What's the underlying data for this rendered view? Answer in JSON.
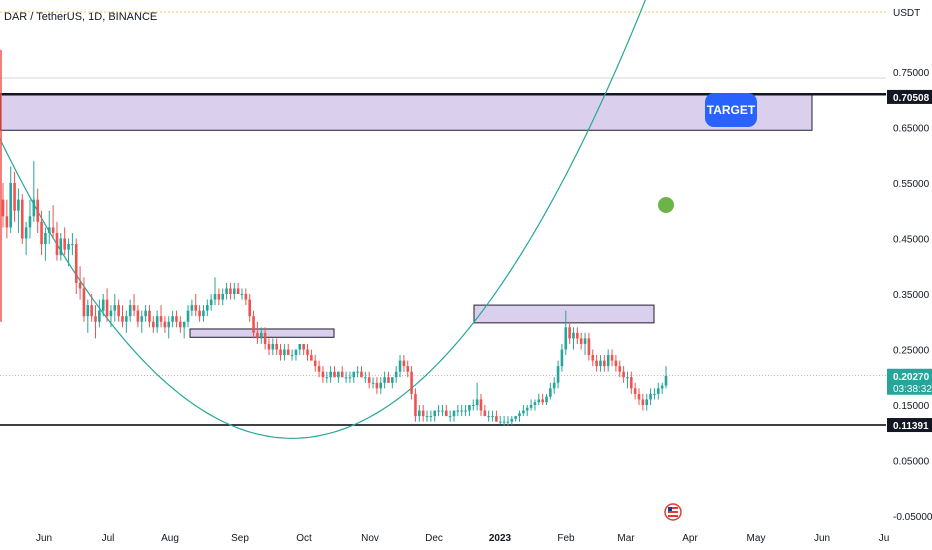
{
  "header": {
    "title": "DAR / TetherUS, 1D, BINANCE",
    "currency": "USDT"
  },
  "colors": {
    "up": "#26a69a",
    "down": "#ef5350",
    "zone_fill": "#d1c4e9",
    "zone_stroke": "#1e1e2e",
    "curve": "#26a69a",
    "target_bg": "#2962ff",
    "green_dot": "#6bb548",
    "current_price_bg": "#26a69a"
  },
  "chart_data": {
    "type": "candlestick",
    "title": "DAR / TetherUS, 1D, BINANCE",
    "y_axis": {
      "ticks": [
        "0.75000",
        "0.65000",
        "0.55000",
        "0.45000",
        "0.35000",
        "0.25000",
        "0.15000",
        "0.05000",
        "-0.05000"
      ],
      "tick_values": [
        0.75,
        0.65,
        0.55,
        0.45,
        0.35,
        0.25,
        0.15,
        0.05,
        -0.05
      ],
      "range": [
        -0.07,
        0.82
      ]
    },
    "x_axis": {
      "ticks": [
        "Jun",
        "Jul",
        "Aug",
        "Sep",
        "Oct",
        "Nov",
        "Dec",
        "2023",
        "Feb",
        "Mar",
        "Apr",
        "May",
        "Jun",
        "Ju"
      ],
      "tick_days": [
        10,
        40,
        71,
        102,
        132,
        163,
        193,
        224,
        255,
        283,
        314,
        344,
        375,
        405
      ]
    },
    "price_tags": [
      {
        "label": "0.70508",
        "value": 0.70508,
        "style": "dark"
      },
      {
        "label": "0.20270",
        "value": 0.2027,
        "countdown": "03:38:32",
        "style": "current"
      },
      {
        "label": "0.11391",
        "value": 0.11391,
        "style": "dark"
      }
    ],
    "zones": [
      {
        "from_day": -5,
        "to_day": 405,
        "low": 0.645,
        "high": 0.71
      },
      {
        "from_day": 94,
        "to_day": 166,
        "low": 0.272,
        "high": 0.287
      },
      {
        "from_day": 236,
        "to_day": 326,
        "low": 0.298,
        "high": 0.33
      }
    ],
    "target_label": "TARGET",
    "support_level": 0.11391,
    "candles": [
      [
        0.52,
        0.55,
        0.47,
        0.49
      ],
      [
        0.49,
        0.52,
        0.45,
        0.47
      ],
      [
        0.47,
        0.58,
        0.46,
        0.55
      ],
      [
        0.55,
        0.57,
        0.48,
        0.5
      ],
      [
        0.5,
        0.54,
        0.46,
        0.52
      ],
      [
        0.52,
        0.53,
        0.44,
        0.45
      ],
      [
        0.45,
        0.48,
        0.42,
        0.47
      ],
      [
        0.47,
        0.52,
        0.45,
        0.49
      ],
      [
        0.49,
        0.59,
        0.48,
        0.52
      ],
      [
        0.52,
        0.54,
        0.46,
        0.48
      ],
      [
        0.48,
        0.5,
        0.42,
        0.44
      ],
      [
        0.44,
        0.47,
        0.41,
        0.46
      ],
      [
        0.46,
        0.5,
        0.44,
        0.47
      ],
      [
        0.47,
        0.51,
        0.45,
        0.46
      ],
      [
        0.46,
        0.48,
        0.41,
        0.42
      ],
      [
        0.42,
        0.46,
        0.41,
        0.45
      ],
      [
        0.45,
        0.47,
        0.42,
        0.43
      ],
      [
        0.43,
        0.45,
        0.4,
        0.44
      ],
      [
        0.44,
        0.46,
        0.42,
        0.44
      ],
      [
        0.44,
        0.45,
        0.35,
        0.37
      ],
      [
        0.37,
        0.4,
        0.34,
        0.36
      ],
      [
        0.36,
        0.38,
        0.3,
        0.31
      ],
      [
        0.31,
        0.34,
        0.28,
        0.33
      ],
      [
        0.33,
        0.35,
        0.3,
        0.31
      ],
      [
        0.31,
        0.33,
        0.27,
        0.3
      ],
      [
        0.3,
        0.34,
        0.29,
        0.32
      ],
      [
        0.32,
        0.35,
        0.31,
        0.34
      ],
      [
        0.34,
        0.36,
        0.3,
        0.31
      ],
      [
        0.31,
        0.33,
        0.29,
        0.32
      ],
      [
        0.32,
        0.35,
        0.3,
        0.33
      ],
      [
        0.33,
        0.34,
        0.3,
        0.31
      ],
      [
        0.31,
        0.33,
        0.29,
        0.3
      ],
      [
        0.3,
        0.32,
        0.28,
        0.31
      ],
      [
        0.31,
        0.34,
        0.3,
        0.33
      ],
      [
        0.33,
        0.35,
        0.31,
        0.32
      ],
      [
        0.32,
        0.33,
        0.29,
        0.3
      ],
      [
        0.3,
        0.32,
        0.28,
        0.31
      ],
      [
        0.31,
        0.33,
        0.3,
        0.32
      ],
      [
        0.32,
        0.33,
        0.29,
        0.3
      ],
      [
        0.3,
        0.31,
        0.28,
        0.29
      ],
      [
        0.29,
        0.32,
        0.28,
        0.31
      ],
      [
        0.31,
        0.33,
        0.29,
        0.3
      ],
      [
        0.3,
        0.31,
        0.28,
        0.29
      ],
      [
        0.29,
        0.31,
        0.27,
        0.3
      ],
      [
        0.3,
        0.32,
        0.29,
        0.31
      ],
      [
        0.31,
        0.32,
        0.29,
        0.3
      ],
      [
        0.3,
        0.31,
        0.28,
        0.29
      ],
      [
        0.29,
        0.3,
        0.27,
        0.3
      ],
      [
        0.3,
        0.33,
        0.29,
        0.32
      ],
      [
        0.32,
        0.34,
        0.31,
        0.33
      ],
      [
        0.33,
        0.35,
        0.31,
        0.32
      ],
      [
        0.32,
        0.33,
        0.3,
        0.31
      ],
      [
        0.31,
        0.33,
        0.3,
        0.32
      ],
      [
        0.32,
        0.34,
        0.31,
        0.33
      ],
      [
        0.33,
        0.35,
        0.32,
        0.34
      ],
      [
        0.34,
        0.38,
        0.33,
        0.35
      ],
      [
        0.35,
        0.36,
        0.33,
        0.34
      ],
      [
        0.34,
        0.36,
        0.33,
        0.35
      ],
      [
        0.35,
        0.37,
        0.34,
        0.36
      ],
      [
        0.36,
        0.37,
        0.34,
        0.35
      ],
      [
        0.35,
        0.37,
        0.34,
        0.36
      ],
      [
        0.36,
        0.37,
        0.35,
        0.35
      ],
      [
        0.35,
        0.36,
        0.34,
        0.35
      ],
      [
        0.35,
        0.36,
        0.33,
        0.34
      ],
      [
        0.34,
        0.35,
        0.3,
        0.31
      ],
      [
        0.31,
        0.32,
        0.27,
        0.28
      ],
      [
        0.28,
        0.3,
        0.26,
        0.27
      ],
      [
        0.27,
        0.29,
        0.26,
        0.28
      ],
      [
        0.28,
        0.29,
        0.25,
        0.26
      ],
      [
        0.26,
        0.27,
        0.24,
        0.25
      ],
      [
        0.25,
        0.27,
        0.24,
        0.26
      ],
      [
        0.26,
        0.27,
        0.24,
        0.25
      ],
      [
        0.25,
        0.26,
        0.23,
        0.24
      ],
      [
        0.24,
        0.26,
        0.23,
        0.25
      ],
      [
        0.25,
        0.26,
        0.24,
        0.24
      ],
      [
        0.24,
        0.25,
        0.23,
        0.24
      ],
      [
        0.24,
        0.25,
        0.23,
        0.25
      ],
      [
        0.25,
        0.26,
        0.24,
        0.26
      ],
      [
        0.26,
        0.26,
        0.24,
        0.25
      ],
      [
        0.25,
        0.26,
        0.23,
        0.24
      ],
      [
        0.24,
        0.25,
        0.23,
        0.23
      ],
      [
        0.23,
        0.24,
        0.21,
        0.22
      ],
      [
        0.22,
        0.23,
        0.2,
        0.21
      ],
      [
        0.21,
        0.22,
        0.19,
        0.2
      ],
      [
        0.2,
        0.21,
        0.19,
        0.2
      ],
      [
        0.2,
        0.22,
        0.19,
        0.21
      ],
      [
        0.21,
        0.22,
        0.2,
        0.2
      ],
      [
        0.2,
        0.21,
        0.19,
        0.21
      ],
      [
        0.21,
        0.22,
        0.2,
        0.2
      ],
      [
        0.2,
        0.21,
        0.19,
        0.2
      ],
      [
        0.2,
        0.21,
        0.19,
        0.2
      ],
      [
        0.2,
        0.21,
        0.19,
        0.21
      ],
      [
        0.21,
        0.22,
        0.2,
        0.21
      ],
      [
        0.21,
        0.22,
        0.2,
        0.2
      ],
      [
        0.2,
        0.21,
        0.19,
        0.2
      ],
      [
        0.2,
        0.21,
        0.18,
        0.19
      ],
      [
        0.19,
        0.2,
        0.18,
        0.19
      ],
      [
        0.19,
        0.2,
        0.17,
        0.18
      ],
      [
        0.18,
        0.2,
        0.17,
        0.19
      ],
      [
        0.19,
        0.21,
        0.18,
        0.2
      ],
      [
        0.2,
        0.21,
        0.19,
        0.19
      ],
      [
        0.19,
        0.2,
        0.18,
        0.2
      ],
      [
        0.2,
        0.22,
        0.19,
        0.21
      ],
      [
        0.21,
        0.24,
        0.2,
        0.23
      ],
      [
        0.23,
        0.24,
        0.21,
        0.22
      ],
      [
        0.22,
        0.23,
        0.2,
        0.21
      ],
      [
        0.21,
        0.22,
        0.16,
        0.17
      ],
      [
        0.17,
        0.18,
        0.12,
        0.13
      ],
      [
        0.13,
        0.15,
        0.12,
        0.14
      ],
      [
        0.14,
        0.15,
        0.12,
        0.13
      ],
      [
        0.13,
        0.14,
        0.12,
        0.13
      ],
      [
        0.13,
        0.14,
        0.12,
        0.13
      ],
      [
        0.13,
        0.14,
        0.12,
        0.14
      ],
      [
        0.14,
        0.15,
        0.13,
        0.14
      ],
      [
        0.14,
        0.15,
        0.13,
        0.14
      ],
      [
        0.14,
        0.15,
        0.13,
        0.13
      ],
      [
        0.13,
        0.14,
        0.12,
        0.13
      ],
      [
        0.13,
        0.14,
        0.12,
        0.14
      ],
      [
        0.14,
        0.15,
        0.13,
        0.14
      ],
      [
        0.14,
        0.15,
        0.13,
        0.14
      ],
      [
        0.14,
        0.15,
        0.13,
        0.14
      ],
      [
        0.14,
        0.15,
        0.13,
        0.15
      ],
      [
        0.15,
        0.16,
        0.14,
        0.15
      ],
      [
        0.15,
        0.19,
        0.14,
        0.16
      ],
      [
        0.16,
        0.17,
        0.13,
        0.14
      ],
      [
        0.14,
        0.15,
        0.13,
        0.13
      ],
      [
        0.13,
        0.14,
        0.12,
        0.13
      ],
      [
        0.13,
        0.14,
        0.12,
        0.13
      ],
      [
        0.13,
        0.14,
        0.12,
        0.12
      ],
      [
        0.12,
        0.13,
        0.115,
        0.12
      ],
      [
        0.12,
        0.13,
        0.113,
        0.12
      ],
      [
        0.12,
        0.13,
        0.113,
        0.12
      ],
      [
        0.12,
        0.13,
        0.114,
        0.125
      ],
      [
        0.125,
        0.13,
        0.12,
        0.13
      ],
      [
        0.13,
        0.14,
        0.12,
        0.135
      ],
      [
        0.135,
        0.15,
        0.13,
        0.14
      ],
      [
        0.14,
        0.15,
        0.13,
        0.145
      ],
      [
        0.145,
        0.16,
        0.14,
        0.15
      ],
      [
        0.15,
        0.16,
        0.14,
        0.155
      ],
      [
        0.155,
        0.17,
        0.15,
        0.16
      ],
      [
        0.16,
        0.17,
        0.15,
        0.155
      ],
      [
        0.155,
        0.17,
        0.15,
        0.165
      ],
      [
        0.165,
        0.19,
        0.16,
        0.18
      ],
      [
        0.18,
        0.2,
        0.17,
        0.19
      ],
      [
        0.19,
        0.23,
        0.18,
        0.22
      ],
      [
        0.22,
        0.26,
        0.21,
        0.25
      ],
      [
        0.25,
        0.32,
        0.24,
        0.29
      ],
      [
        0.29,
        0.3,
        0.26,
        0.27
      ],
      [
        0.27,
        0.29,
        0.25,
        0.28
      ],
      [
        0.28,
        0.29,
        0.26,
        0.27
      ],
      [
        0.27,
        0.28,
        0.25,
        0.26
      ],
      [
        0.26,
        0.28,
        0.24,
        0.27
      ],
      [
        0.27,
        0.28,
        0.23,
        0.24
      ],
      [
        0.24,
        0.25,
        0.22,
        0.23
      ],
      [
        0.23,
        0.24,
        0.21,
        0.22
      ],
      [
        0.22,
        0.24,
        0.21,
        0.23
      ],
      [
        0.23,
        0.24,
        0.21,
        0.22
      ],
      [
        0.22,
        0.25,
        0.21,
        0.24
      ],
      [
        0.24,
        0.25,
        0.22,
        0.23
      ],
      [
        0.23,
        0.24,
        0.21,
        0.22
      ],
      [
        0.22,
        0.23,
        0.2,
        0.21
      ],
      [
        0.21,
        0.22,
        0.19,
        0.2
      ],
      [
        0.2,
        0.21,
        0.18,
        0.2
      ],
      [
        0.2,
        0.21,
        0.17,
        0.18
      ],
      [
        0.18,
        0.19,
        0.16,
        0.17
      ],
      [
        0.17,
        0.18,
        0.15,
        0.16
      ],
      [
        0.16,
        0.17,
        0.14,
        0.15
      ],
      [
        0.15,
        0.17,
        0.14,
        0.16
      ],
      [
        0.16,
        0.18,
        0.15,
        0.17
      ],
      [
        0.17,
        0.18,
        0.16,
        0.17
      ],
      [
        0.17,
        0.19,
        0.16,
        0.18
      ],
      [
        0.18,
        0.19,
        0.17,
        0.185
      ],
      [
        0.185,
        0.22,
        0.18,
        0.2027
      ]
    ]
  }
}
